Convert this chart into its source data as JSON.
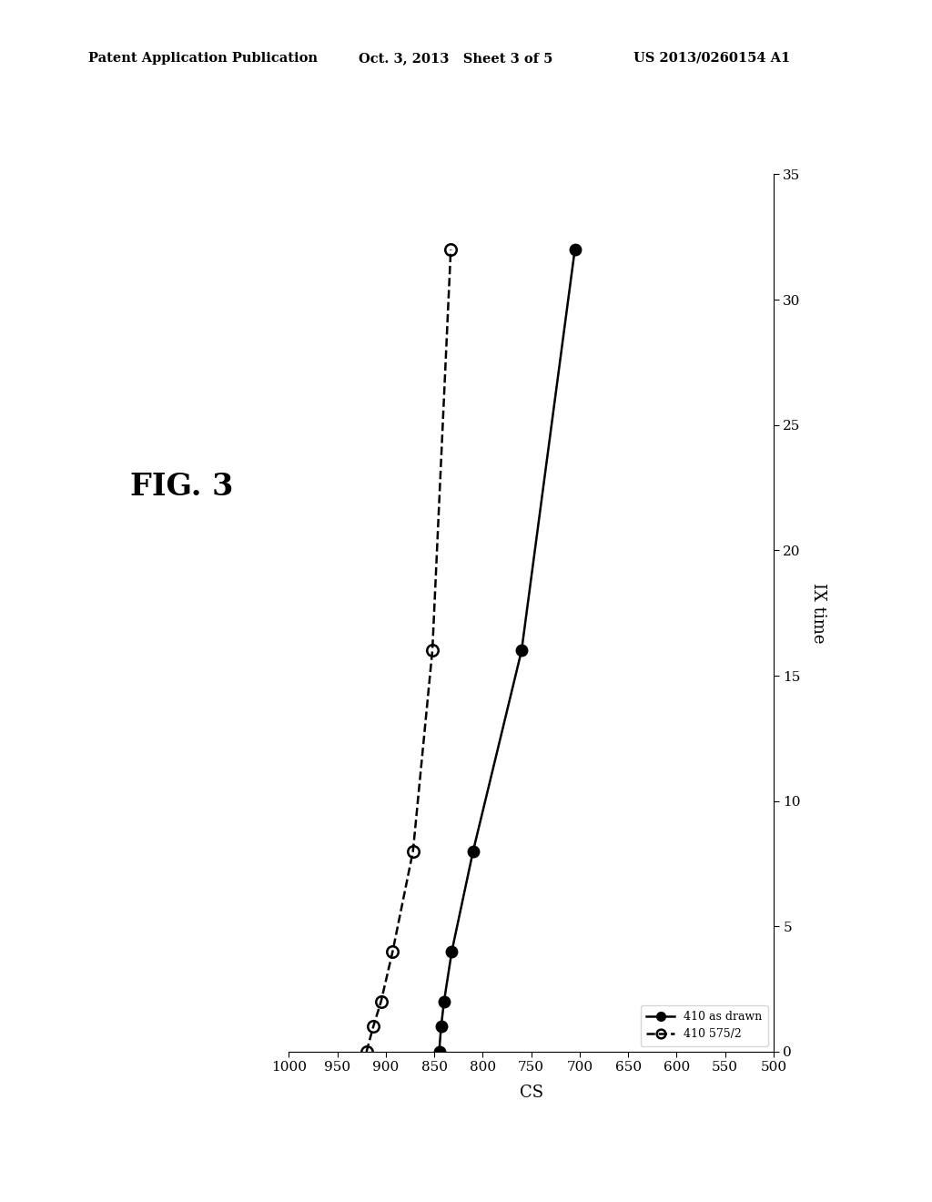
{
  "title_fig": "FIG. 3",
  "header_left": "Patent Application Publication",
  "header_center": "Oct. 3, 2013   Sheet 3 of 5",
  "header_right": "US 2013/0260154 A1",
  "series1_name": "410 as drawn",
  "series2_name": "410 575/2",
  "series1_ix": [
    0,
    1,
    2,
    4,
    8,
    16,
    32
  ],
  "series1_cs": [
    845,
    843,
    840,
    832,
    810,
    760,
    705
  ],
  "series2_ix": [
    0,
    1,
    2,
    4,
    8,
    16,
    32
  ],
  "series2_cs": [
    920,
    913,
    905,
    893,
    872,
    852,
    833
  ],
  "label1_ix": 3.5,
  "label1_cs": 875,
  "label2_ix": 5.5,
  "label2_cs": 808,
  "cs_label": "CS",
  "ix_label": "IX time",
  "cs_ticks": [
    500,
    550,
    600,
    650,
    700,
    750,
    800,
    850,
    900,
    950,
    1000
  ],
  "ix_ticks": [
    0,
    5,
    10,
    15,
    20,
    25,
    30,
    35
  ],
  "cs_lim_min": 500,
  "cs_lim_max": 1000,
  "ix_lim_min": 0,
  "ix_lim_max": 35,
  "background_color": "#ffffff"
}
